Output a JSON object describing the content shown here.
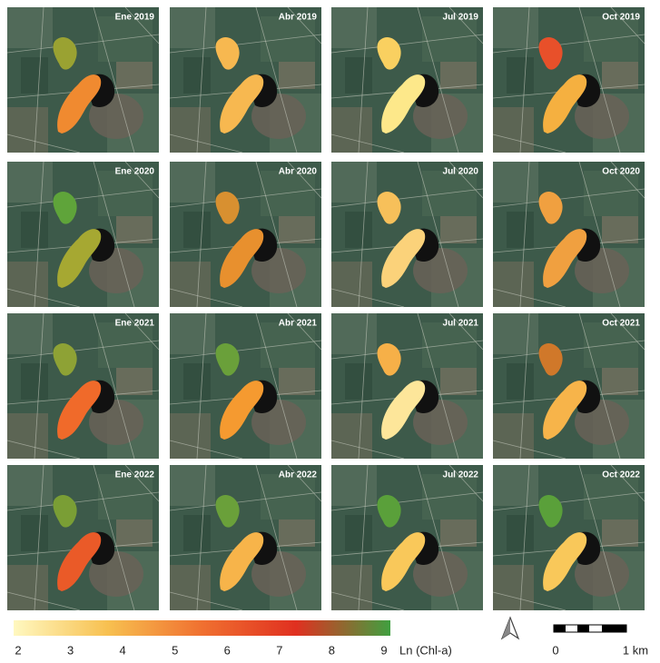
{
  "panels": [
    {
      "label": "Ene 2019",
      "lake_colors": [
        "#9aa232",
        "#f08a30"
      ]
    },
    {
      "label": "Abr 2019",
      "lake_colors": [
        "#f7b850",
        "#f7b850"
      ]
    },
    {
      "label": "Jul 2019",
      "lake_colors": [
        "#f9d060",
        "#fde88a"
      ]
    },
    {
      "label": "Oct 2019",
      "lake_colors": [
        "#e8502a",
        "#f5b040"
      ]
    },
    {
      "label": "Ene 2020",
      "lake_colors": [
        "#5fa43a",
        "#a6a832"
      ]
    },
    {
      "label": "Abr 2020",
      "lake_colors": [
        "#d89030",
        "#e8902e"
      ]
    },
    {
      "label": "Jul 2020",
      "lake_colors": [
        "#f7c05a",
        "#fbd27a"
      ]
    },
    {
      "label": "Oct 2020",
      "lake_colors": [
        "#f0a040",
        "#f0a040"
      ]
    },
    {
      "label": "Ene 2021",
      "lake_colors": [
        "#8ea235",
        "#f06a2a"
      ]
    },
    {
      "label": "Abr 2021",
      "lake_colors": [
        "#6aa03a",
        "#f59a30"
      ]
    },
    {
      "label": "Jul 2021",
      "lake_colors": [
        "#f6b048",
        "#fde69a"
      ]
    },
    {
      "label": "Oct 2021",
      "lake_colors": [
        "#d0782a",
        "#f7b44a"
      ]
    },
    {
      "label": "Ene 2022",
      "lake_colors": [
        "#7a9e35",
        "#ea5a28"
      ]
    },
    {
      "label": "Abr 2022",
      "lake_colors": [
        "#6aa03a",
        "#f7b44a"
      ]
    },
    {
      "label": "Jul 2022",
      "lake_colors": [
        "#5aa03a",
        "#f9c85a"
      ]
    },
    {
      "label": "Oct 2022",
      "lake_colors": [
        "#5aa03a",
        "#f9c85a"
      ]
    }
  ],
  "legend": {
    "title": "Ln (Chl-a)",
    "range": [
      2,
      9
    ],
    "ticks": [
      2,
      3,
      4,
      5,
      6,
      7,
      8,
      9
    ],
    "colors": [
      "#fff8c0",
      "#f7c050",
      "#f07030",
      "#e03020",
      "#40a040"
    ]
  },
  "scale_bar": {
    "labels": [
      "0",
      "1 km"
    ]
  }
}
